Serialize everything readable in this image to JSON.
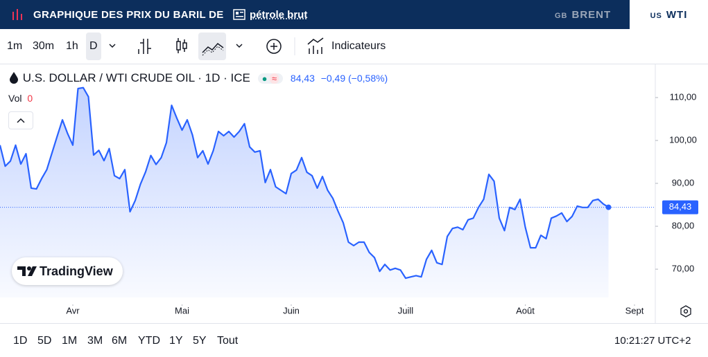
{
  "header": {
    "title": "GRAPHIQUE DES PRIX DU BARIL DE",
    "link": "pétrole brut",
    "tabs": [
      {
        "code": "GB",
        "name": "BRENT"
      },
      {
        "code": "US",
        "name": "WTI"
      }
    ]
  },
  "toolbar": {
    "intervals": [
      "1m",
      "30m",
      "1h",
      "D"
    ],
    "indicators": "Indicateurs"
  },
  "legend": {
    "symbol": "U.S. DOLLAR / WTI CRUDE OIL · 1D · ICE",
    "price": "84,43",
    "change": "−0,49 (−0,58%)",
    "vol_label": "Vol",
    "vol_value": "0"
  },
  "brand": "TradingView",
  "chart_data": {
    "type": "line",
    "color": "#2962ff",
    "values": [
      98.9,
      94.0,
      95.2,
      98.9,
      94.5,
      96.9,
      88.9,
      88.7,
      91.1,
      93.2,
      97.1,
      101.0,
      104.8,
      101.6,
      98.9,
      112.1,
      112.3,
      110.2,
      96.6,
      97.7,
      95.3,
      98.1,
      91.8,
      91.1,
      93.2,
      83.4,
      86.0,
      89.8,
      92.7,
      96.5,
      94.4,
      96.0,
      99.5,
      108.2,
      105.2,
      102.4,
      104.8,
      101.3,
      96.0,
      97.6,
      94.5,
      97.6,
      102.1,
      101.1,
      102.1,
      100.8,
      102.1,
      103.9,
      98.5,
      97.3,
      97.6,
      90.2,
      93.2,
      89.2,
      88.4,
      87.6,
      92.3,
      93.1,
      96.0,
      92.6,
      91.8,
      88.9,
      91.6,
      88.4,
      86.5,
      83.5,
      80.8,
      76.3,
      75.5,
      76.3,
      76.3,
      73.9,
      72.7,
      69.5,
      71.1,
      69.8,
      70.2,
      69.8,
      67.9,
      68.2,
      68.5,
      68.2,
      72.3,
      74.4,
      71.5,
      71.1,
      77.6,
      79.5,
      79.8,
      79.2,
      81.5,
      81.9,
      84.4,
      86.3,
      92.1,
      90.5,
      81.9,
      79.0,
      84.4,
      83.9,
      86.3,
      79.8,
      75.0,
      75.0,
      77.9,
      77.1,
      81.9,
      82.4,
      83.1,
      81.1,
      82.3,
      84.7,
      84.4,
      84.4,
      86.0,
      86.3,
      85.2,
      84.43
    ],
    "xlim": [
      0,
      126
    ],
    "xticks": [
      {
        "value": 14,
        "label": "Avr"
      },
      {
        "value": 35,
        "label": "Mai"
      },
      {
        "value": 56,
        "label": "Juin"
      },
      {
        "value": 78,
        "label": "Juill"
      },
      {
        "value": 101,
        "label": "Août"
      },
      {
        "value": 122,
        "label": "Sept"
      }
    ],
    "ylim": [
      63.4,
      117.9
    ],
    "yticks": [
      {
        "value": 70,
        "label": "70,00"
      },
      {
        "value": 80,
        "label": "80,00"
      },
      {
        "value": 90,
        "label": "90,00"
      },
      {
        "value": 100,
        "label": "100,00"
      },
      {
        "value": 110,
        "label": "110,00"
      }
    ],
    "last": {
      "value": 84.43,
      "label": "84,43"
    }
  },
  "ranges": [
    "1D",
    "5D",
    "1M",
    "3M",
    "6M",
    "YTD",
    "1Y",
    "5Y",
    "Tout"
  ],
  "clock": "10:21:27 UTC+2"
}
